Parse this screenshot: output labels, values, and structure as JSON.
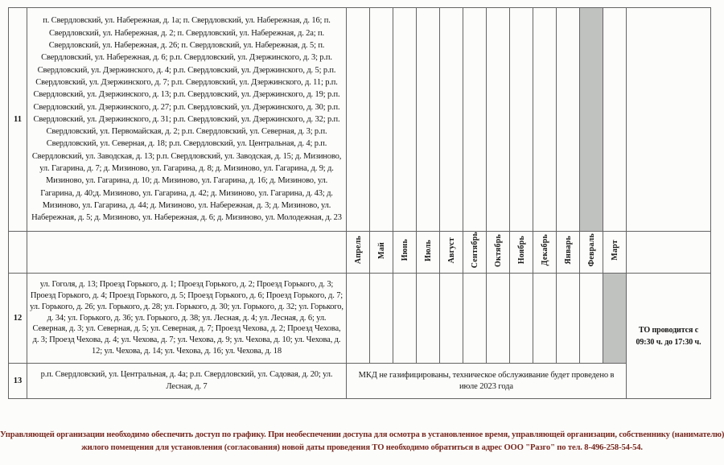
{
  "table": {
    "months": [
      "Апрель",
      "Май",
      "Июнь",
      "Июль",
      "Август",
      "Сентябрь",
      "Октябрь",
      "Ноябрь",
      "Декабрь",
      "Январь",
      "Февраль",
      "Март"
    ],
    "rows": [
      {
        "num": "11",
        "addresses": "п. Свердловский, ул. Набережная, д. 1а; п. Свердловский, ул. Набережная, д. 16; п. Свердловский, ул. Набережная, д. 2; п. Свердловский, ул. Набережная, д. 2а; п. Свердловский, ул. Набережная, д. 26; п. Свердловский, ул. Набережная, д. 5; п. Свердловский, ул. Набережная, д. 6; р.п. Свердловский, ул. Дзержинского, д. 3; р.п. Свердловский, ул. Дзержинского, д. 4; р.п. Свердловский, ул. Дзержинского, д. 5; р.п. Свердловский, ул. Дзержинского, д. 7; р.п. Свердловский, ул. Дзержинского, д. 11; р.п. Свердловский, ул. Дзержинского, д. 13; р.п. Свердловский, ул. Дзержинского, д. 19; р.п. Свердловский, ул. Дзержинского, д. 27; р.п. Свердловский, ул. Дзержинского, д. 30; р.п. Свердловский, ул. Дзержинского, д. 31; р.п. Свердловский, ул. Дзержинского, д. 32; р.п. Свердловский, ул. Первомайская, д. 2; р.п. Свердловский, ул. Северная, д. 3; р.п. Свердловский, ул. Северная, д. 18; р.п. Свердловский, ул. Центральная, д. 4; р.п. Свердловский, ул. Заводская, д. 13; р.п. Свердловский, ул. Заводская, д. 15; д. Мизиново, ул. Гагарина, д. 7; д. Мизиново, ул. Гагарина, д. 8; д. Мизиново, ул. Гагарина, д. 9; д. Мизиново, ул. Гагарина, д. 10; д. Мизиново, ул. Гагарина, д. 16; д. Мизиново, ул. Гагарина, д. 40;д. Мизиново, ул. Гагарина, д. 42; д. Мизиново, ул. Гагарина, д. 43; д. Мизиново, ул. Гагарина, д. 44; д. Мизиново, ул. Набережная, д. 3; д. Мизиново, ул. Набережная, д. 5; д. Мизиново, ул. Набережная, д. 6; д. Мизиново, ул. Молодежная, д. 23",
        "scheduled_month": "Февраль",
        "scheduled_month_index": 10
      },
      {
        "num": "12",
        "addresses": "ул. Гоголя, д. 13; Проезд Горького, д. 1; Проезд Горького, д. 2; Проезд Горького, д. 3; Проезд Горького, д. 4; Проезд Горького, д. 5; Проезд Горького, д. 6; Проезд Горького, д. 7; ул. Горького, д. 26; ул. Горького, д. 28; ул. Горького, д. 30; ул. Горького, д. 32; ул. Горького, д. 34; ул. Горького, д. 36; ул. Горького, д. 38; ул. Лесная, д. 4; ул. Лесная, д. 6; ул. Северная, д. 3; ул. Северная, д. 5; ул. Северная, д. 7; Проезд Чехова, д. 2; Проезд Чехова, д. 3; Проезд Чехова, д. 4; ул. Чехова, д. 7; ул. Чехова, д. 9; ул. Чехова, д. 10; ул. Чехова, д. 12; ул. Чехова, д. 14; ул. Чехова, д. 16; ул. Чехова, д. 18",
        "scheduled_month": "Март",
        "scheduled_month_index": 11,
        "right_note": "ТО проводится с 09:30 ч. до 17:30 ч."
      },
      {
        "num": "13",
        "addresses": "р.п. Свердловский, ул. Центральная, д. 4а; р.п. Свердловский, ул. Садовая, д. 20; ул. Лесная, д. 7",
        "months_note": "МКД не газифицированы, техническое обслуживание будет проведено в июле 2023 года"
      }
    ]
  },
  "footer": {
    "lines": [
      "Управляющей организации необходимо обеспечить доступ по графику. При необеспечении доступа для осмотра в установленное время, управляющей организации, собственнику (нанимателю)",
      "жилого помещения для установления (согласования) новой даты проведения ТО необходимо обратиться в адрес ООО \"Разго\"  по тел. 8-496-258-54-54."
    ]
  },
  "colors": {
    "shaded_cell": "#c0c2c0",
    "footer_text": "#77281f",
    "border": "#646464"
  }
}
